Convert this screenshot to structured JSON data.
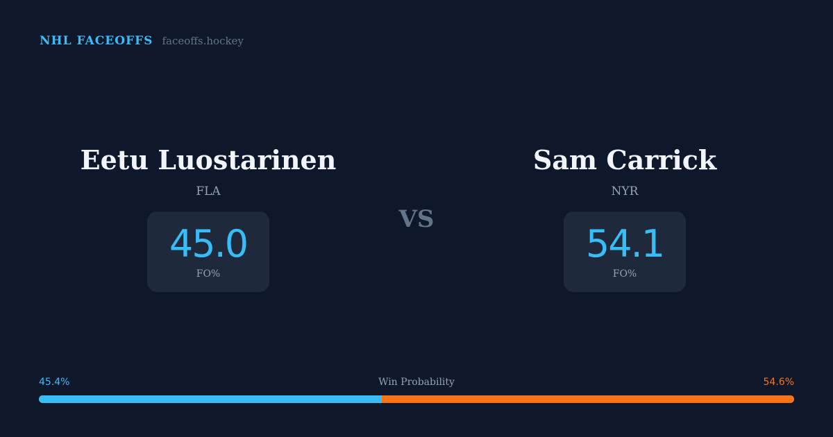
{
  "brand": {
    "title": "NHL FACEOFFS",
    "url": "faceoffs.hockey"
  },
  "players": [
    {
      "name": "Eetu Luostarinen",
      "team": "FLA",
      "fo_pct": "45.0",
      "fo_label": "FO%"
    },
    {
      "name": "Sam Carrick",
      "team": "NYR",
      "fo_pct": "54.1",
      "fo_label": "FO%"
    }
  ],
  "vs": "VS",
  "win_probability": {
    "label": "Win Probability",
    "left": "45.4%",
    "right": "54.6%",
    "left_value": 45.4,
    "right_value": 54.6,
    "colors": {
      "left": "#38bdf8",
      "right": "#f97316"
    }
  }
}
